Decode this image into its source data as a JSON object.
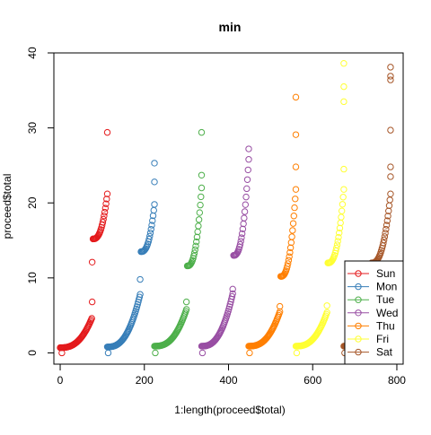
{
  "chart_data": {
    "type": "scatter",
    "title": "min",
    "xlabel": "1:length(proceed$total)",
    "ylabel": "proceed$total",
    "xlim": [
      -15,
      815
    ],
    "ylim": [
      -1.5,
      40
    ],
    "xticks": [
      0,
      200,
      400,
      600,
      800
    ],
    "xtick_labels": [
      "0",
      "200",
      "400",
      "600",
      "800"
    ],
    "yticks": [
      0,
      10,
      20,
      30,
      40
    ],
    "ytick_labels": [
      "0",
      "10",
      "20",
      "30",
      "40"
    ],
    "grid": false,
    "legend_position": "bottom-right",
    "marker": "open-circle",
    "series": [
      {
        "name": "Sun",
        "color": "#E41A1C",
        "groups": [
          {
            "x_start": 0,
            "x_end": 75,
            "y_start": 0.7,
            "y_end": 4.6
          },
          {
            "x_start": 78,
            "x_end": 112,
            "y_start": 15.2,
            "y_end": 21.2
          }
        ],
        "extra_points": [
          {
            "x": 4,
            "y": 0.0
          },
          {
            "x": 76,
            "y": 6.8
          },
          {
            "x": 76,
            "y": 12.1
          },
          {
            "x": 112,
            "y": 29.4
          }
        ]
      },
      {
        "name": "Mon",
        "color": "#377EB8",
        "groups": [
          {
            "x_start": 112,
            "x_end": 190,
            "y_start": 0.8,
            "y_end": 7.8
          },
          {
            "x_start": 192,
            "x_end": 224,
            "y_start": 13.5,
            "y_end": 19.8
          }
        ],
        "extra_points": [
          {
            "x": 114,
            "y": 0.0
          },
          {
            "x": 190,
            "y": 9.8
          },
          {
            "x": 224,
            "y": 25.3
          },
          {
            "x": 224,
            "y": 22.8
          }
        ]
      },
      {
        "name": "Tue",
        "color": "#4DAF4A",
        "groups": [
          {
            "x_start": 224,
            "x_end": 300,
            "y_start": 0.9,
            "y_end": 5.8
          },
          {
            "x_start": 302,
            "x_end": 336,
            "y_start": 11.6,
            "y_end": 22.0
          }
        ],
        "extra_points": [
          {
            "x": 226,
            "y": 0.0
          },
          {
            "x": 300,
            "y": 6.8
          },
          {
            "x": 336,
            "y": 29.4
          },
          {
            "x": 336,
            "y": 23.7
          }
        ]
      },
      {
        "name": "Wed",
        "color": "#984EA3",
        "groups": [
          {
            "x_start": 336,
            "x_end": 410,
            "y_start": 0.9,
            "y_end": 7.9
          },
          {
            "x_start": 412,
            "x_end": 448,
            "y_start": 13.0,
            "y_end": 25.8
          }
        ],
        "extra_points": [
          {
            "x": 338,
            "y": 0.0
          },
          {
            "x": 410,
            "y": 8.5
          },
          {
            "x": 448,
            "y": 27.2
          }
        ]
      },
      {
        "name": "Thu",
        "color": "#FF7F00",
        "groups": [
          {
            "x_start": 448,
            "x_end": 522,
            "y_start": 0.9,
            "y_end": 5.5
          },
          {
            "x_start": 524,
            "x_end": 560,
            "y_start": 10.2,
            "y_end": 21.8
          }
        ],
        "extra_points": [
          {
            "x": 450,
            "y": 0.0
          },
          {
            "x": 522,
            "y": 6.2
          },
          {
            "x": 560,
            "y": 34.1
          },
          {
            "x": 560,
            "y": 29.1
          },
          {
            "x": 560,
            "y": 24.8
          }
        ]
      },
      {
        "name": "Fri",
        "color": "#FFFF33",
        "groups": [
          {
            "x_start": 560,
            "x_end": 634,
            "y_start": 0.9,
            "y_end": 5.4
          },
          {
            "x_start": 636,
            "x_end": 674,
            "y_start": 12.0,
            "y_end": 21.8
          }
        ],
        "extra_points": [
          {
            "x": 562,
            "y": 0.0
          },
          {
            "x": 634,
            "y": 6.3
          },
          {
            "x": 674,
            "y": 38.6
          },
          {
            "x": 674,
            "y": 35.5
          },
          {
            "x": 674,
            "y": 33.5
          },
          {
            "x": 674,
            "y": 24.5
          }
        ]
      },
      {
        "name": "Sat",
        "color": "#A65628",
        "groups": [
          {
            "x_start": 674,
            "x_end": 750,
            "y_start": 0.9,
            "y_end": 5.6
          },
          {
            "x_start": 740,
            "x_end": 785,
            "y_start": 12.0,
            "y_end": 21.2
          }
        ],
        "extra_points": [
          {
            "x": 676,
            "y": 0.0
          },
          {
            "x": 785,
            "y": 38.1
          },
          {
            "x": 785,
            "y": 36.9
          },
          {
            "x": 785,
            "y": 36.4
          },
          {
            "x": 785,
            "y": 29.7
          },
          {
            "x": 785,
            "y": 24.8
          },
          {
            "x": 785,
            "y": 23.5
          }
        ]
      }
    ]
  }
}
